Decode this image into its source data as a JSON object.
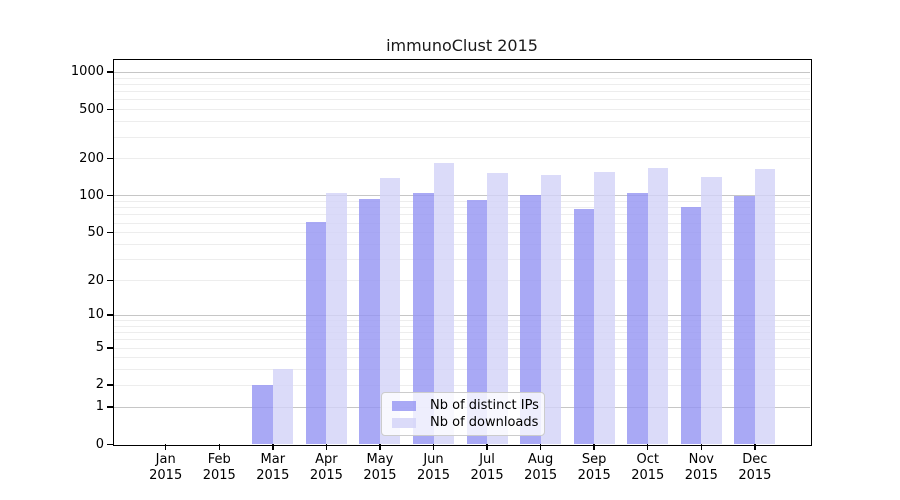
{
  "title": "immunoClust 2015",
  "legend": {
    "items": [
      {
        "label": "Nb of distinct IPs",
        "color": "rgba(147,147,243,0.8)"
      },
      {
        "label": "Nb of downloads",
        "color": "rgba(210,210,248,0.8)"
      }
    ]
  },
  "axes": {
    "y_ticks": [
      0,
      1,
      2,
      5,
      10,
      20,
      50,
      100,
      200,
      500,
      1000
    ],
    "x_labels": [
      {
        "month": "Jan",
        "year": "2015"
      },
      {
        "month": "Feb",
        "year": "2015"
      },
      {
        "month": "Mar",
        "year": "2015"
      },
      {
        "month": "Apr",
        "year": "2015"
      },
      {
        "month": "May",
        "year": "2015"
      },
      {
        "month": "Jun",
        "year": "2015"
      },
      {
        "month": "Jul",
        "year": "2015"
      },
      {
        "month": "Aug",
        "year": "2015"
      },
      {
        "month": "Sep",
        "year": "2015"
      },
      {
        "month": "Oct",
        "year": "2015"
      },
      {
        "month": "Nov",
        "year": "2015"
      },
      {
        "month": "Dec",
        "year": "2015"
      }
    ]
  },
  "colors": {
    "bar_dark": "rgba(147,147,243,0.8)",
    "bar_light": "rgba(210,210,248,0.8)",
    "grid_minor": "#ededed",
    "grid_major": "#c6c6c6",
    "frame": "#000000"
  },
  "chart_data": {
    "type": "bar",
    "title": "immunoClust 2015",
    "categories": [
      "Jan 2015",
      "Feb 2015",
      "Mar 2015",
      "Apr 2015",
      "May 2015",
      "Jun 2015",
      "Jul 2015",
      "Aug 2015",
      "Sep 2015",
      "Oct 2015",
      "Nov 2015",
      "Dec 2015"
    ],
    "series": [
      {
        "name": "Nb of distinct IPs",
        "color": "rgba(147,147,243,0.8)",
        "values": [
          0,
          0,
          2,
          61,
          93,
          104,
          92,
          100,
          78,
          104,
          80,
          99
        ]
      },
      {
        "name": "Nb of downloads",
        "color": "rgba(210,210,248,0.8)",
        "values": [
          0,
          0,
          3,
          105,
          139,
          183,
          152,
          147,
          154,
          168,
          141,
          165
        ]
      }
    ],
    "xlabel": "",
    "ylabel": "",
    "yscale": "log1p",
    "y_ticks": [
      0,
      1,
      2,
      5,
      10,
      20,
      50,
      100,
      200,
      500,
      1000
    ],
    "ylim": [
      0,
      1250
    ],
    "grid": true,
    "legend_position": "inside-bottom-center"
  }
}
